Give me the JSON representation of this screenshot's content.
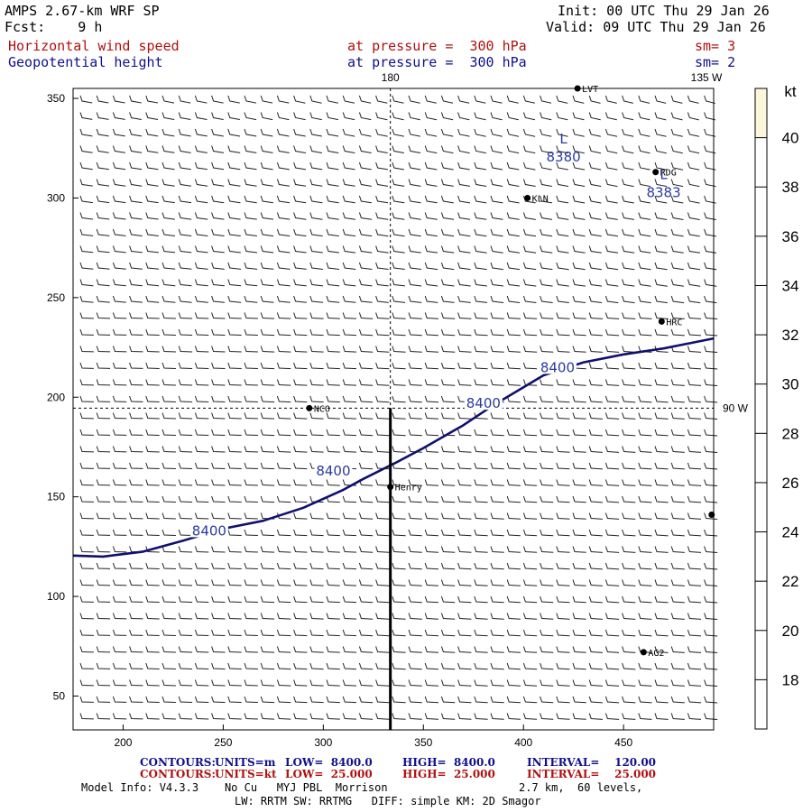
{
  "header": {
    "model": "AMPS 2.67-km WRF SP",
    "fcst": "Fcst:    9 h",
    "init": "Init: 00 UTC Thu 29 Jan 26",
    "valid": "Valid: 09 UTC Thu 29 Jan 26",
    "field1_name": "Horizontal wind speed",
    "field1_level": "at pressure =  300 hPa",
    "field1_sm": "sm= 3",
    "field2_name": "Geopotential height",
    "field2_level": "at pressure =  300 hPa",
    "field2_sm": "sm= 2"
  },
  "chart_data": {
    "type": "contour",
    "xlim": [
      175,
      495
    ],
    "ylim": [
      33,
      355
    ],
    "xticks": [
      200,
      250,
      300,
      350,
      400,
      450
    ],
    "yticks": [
      50,
      100,
      150,
      200,
      250,
      300,
      350
    ],
    "meridian_labels": {
      "top": "180",
      "top_right": "135 W",
      "right": "90 W"
    },
    "meridian_180_x": 333.5,
    "meridian_90w_y": 194.5,
    "cross_section": {
      "x": 333.5,
      "y_from": 33,
      "y_to": 194.5
    },
    "colorbar": {
      "unit": "kt",
      "ticks": [
        18,
        20,
        22,
        24,
        26,
        28,
        30,
        32,
        34,
        36,
        38,
        40
      ],
      "range": [
        16,
        42
      ],
      "shaded_above": 40,
      "shade_color": "#fbf6dc"
    },
    "contours": [
      {
        "level": 8400,
        "label": "8400",
        "points": [
          [
            175,
            120.5
          ],
          [
            190,
            120
          ],
          [
            210,
            122.5
          ],
          [
            230,
            128
          ],
          [
            250,
            134
          ],
          [
            270,
            138
          ],
          [
            290,
            144.5
          ],
          [
            310,
            153.5
          ],
          [
            320,
            159
          ],
          [
            336,
            167
          ],
          [
            350,
            174.5
          ],
          [
            370,
            186
          ],
          [
            385,
            196
          ],
          [
            400,
            205
          ],
          [
            410,
            211
          ],
          [
            430,
            217.5
          ],
          [
            450,
            221.5
          ],
          [
            470,
            224.5
          ],
          [
            495,
            229.5
          ]
        ],
        "labels": [
          [
            243,
            132
          ],
          [
            305,
            162
          ],
          [
            380,
            196
          ],
          [
            417,
            214
          ]
        ]
      }
    ],
    "lows": [
      {
        "symbol": "L",
        "value": "8380",
        "x": 420,
        "y": 322
      },
      {
        "symbol": "L",
        "value": "8383",
        "x": 470,
        "y": 304
      }
    ],
    "stations": [
      {
        "name": "NCO",
        "x": 293,
        "y": 194.5
      },
      {
        "name": "Henry",
        "x": 333.5,
        "y": 155
      },
      {
        "name": "KLN",
        "x": 402,
        "y": 300
      },
      {
        "name": "RDG",
        "x": 466,
        "y": 313
      },
      {
        "name": "HRC",
        "x": 469,
        "y": 238
      },
      {
        "name": "AG2",
        "x": 460,
        "y": 72
      },
      {
        "name": "LVT",
        "x": 427,
        "y": 355
      },
      {
        "name": "",
        "x": 494,
        "y": 141
      }
    ],
    "wind_barbs": "10 kt half-barbs on a regular grid, flow generally westerly turning north-westerly"
  },
  "footer": {
    "contours1_label": "CONTOURS:",
    "contours1_units": "UNITS=m",
    "contours1_low": "LOW=  8400.0",
    "contours1_high": "HIGH=  8400.0",
    "contours1_interval": "INTERVAL=    120.00",
    "contours2_label": "CONTOURS:",
    "contours2_units": "UNITS=kt",
    "contours2_low": "LOW=  25.000",
    "contours2_high": "HIGH=  25.000",
    "contours2_interval": "INTERVAL=    25.000",
    "model_info": "Model Info: V4.3.3    No Cu   MYJ PBL  Morrison",
    "grid_info": "2.7 km,  60 levels,",
    "physics_info": "LW: RRTM SW: RRTMG   DIFF: simple KM: 2D Smagor"
  },
  "colors": {
    "field1": "#b01010",
    "field2": "#10108c",
    "contour": "#10106e",
    "background": "#ffffff"
  }
}
